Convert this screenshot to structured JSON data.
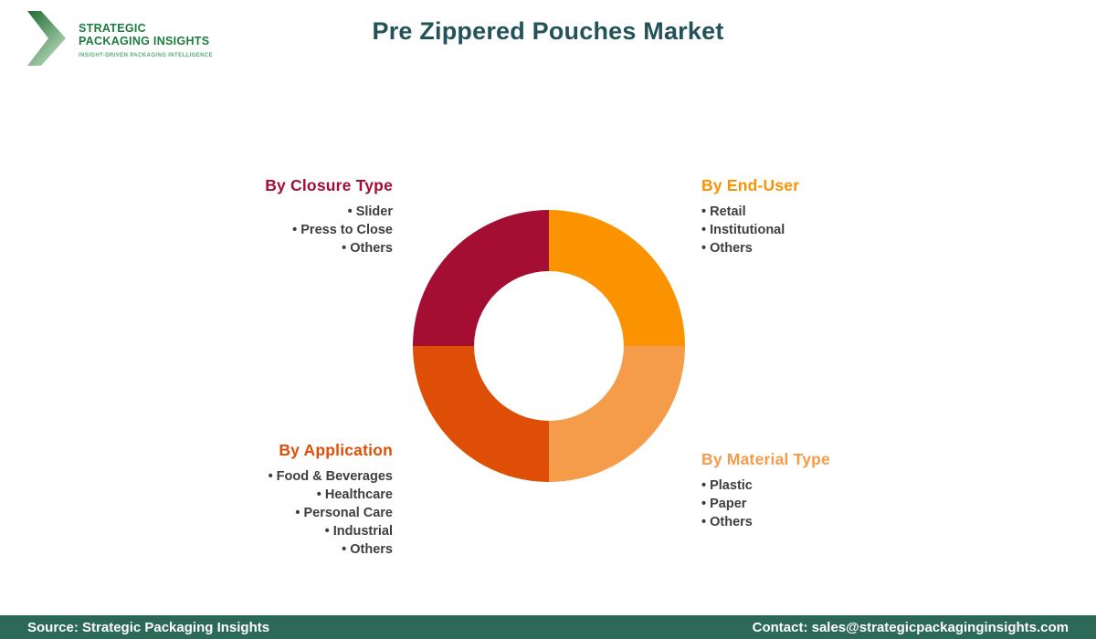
{
  "logo": {
    "line1": "STRATEGIC",
    "line2": "PACKAGING INSIGHTS",
    "tagline": "INSIGHT-DRIVEN PACKAGING INTELLIGENCE",
    "name_color": "#1B7C3D",
    "tagline_color": "#58A877",
    "chevron_gradient": [
      "#1E6C33",
      "#BBDABC"
    ]
  },
  "title": "Pre Zippered Pouches Market",
  "title_color": "#235258",
  "legend_text_color": "#3E3E3E",
  "sections": [
    {
      "id": "closure-type",
      "label": "By Closure Type",
      "color": "#A40E33",
      "items": [
        "Slider",
        "Press to Close",
        "Others"
      ]
    },
    {
      "id": "end-user",
      "label": "By End-User",
      "color": "#FB9300",
      "items": [
        "Retail",
        "Institutional",
        "Others"
      ]
    },
    {
      "id": "application",
      "label": "By Application",
      "color": "#DF4E06",
      "items": [
        "Food & Beverages",
        "Healthcare",
        "Personal Care",
        "Industrial",
        "Others"
      ]
    },
    {
      "id": "material-type",
      "label": "By Material Type",
      "color": "#F49C49",
      "items": [
        "Plastic",
        "Paper",
        "Others"
      ]
    }
  ],
  "chart_data": {
    "type": "pie",
    "subtype": "donut",
    "title": "Pre Zippered Pouches Market",
    "start_angle_deg": -90,
    "direction": "clockwise",
    "inner_radius_ratio": 0.55,
    "legend_position": "around",
    "segments": [
      {
        "id": "end-user",
        "label": "By End-User",
        "value": 25,
        "color": "#FB9300"
      },
      {
        "id": "material-type",
        "label": "By Material Type",
        "value": 25,
        "color": "#F49C49"
      },
      {
        "id": "application",
        "label": "By Application",
        "value": 25,
        "color": "#DF4E06"
      },
      {
        "id": "closure-type",
        "label": "By Closure Type",
        "value": 25,
        "color": "#A40E33"
      }
    ]
  },
  "footer": {
    "source": "Source: Strategic Packaging Insights",
    "contact": "Contact: sales@strategicpackaginginsights.com",
    "bg_color": "#2D6957"
  }
}
